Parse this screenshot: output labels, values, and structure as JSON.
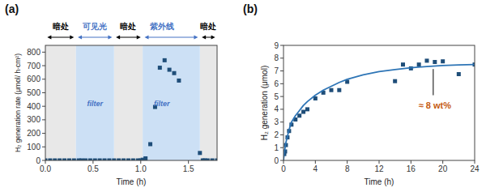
{
  "chart_data": [
    {
      "type": "scatter",
      "title": "(a)",
      "x_label": "Time (h)",
      "y_label": "H₂ generation rate (μmol/ h·cm²)",
      "xlim": [
        0,
        1.8
      ],
      "ylim": [
        0,
        850
      ],
      "xticks": [
        {
          "value": 0,
          "label": "0.0"
        },
        0.5,
        {
          "value": 1.0,
          "label": "1.0"
        },
        1.5
      ],
      "yticks": [
        0,
        100,
        200,
        300,
        400,
        500,
        600,
        700,
        800
      ],
      "series": [
        {
          "type": "scatter",
          "color": "#1f4e79",
          "marker": "square",
          "x": [
            0.0,
            0.05,
            0.1,
            0.15,
            0.2,
            0.25,
            0.3,
            0.35,
            0.38,
            0.42,
            0.47,
            0.52,
            0.57,
            0.62,
            0.67,
            0.72,
            0.77,
            0.82,
            0.87,
            0.92,
            0.97,
            1.0,
            1.02,
            1.05,
            1.1,
            1.15,
            1.2,
            1.25,
            1.3,
            1.35,
            1.4,
            1.62,
            1.65,
            1.67,
            1.7,
            1.75,
            1.8
          ],
          "values": [
            0,
            0,
            0,
            0,
            0,
            0,
            0,
            0,
            0,
            0,
            0,
            0,
            0,
            0,
            0,
            0,
            0,
            0,
            0,
            0,
            0,
            0,
            5,
            15,
            120,
            395,
            685,
            740,
            670,
            645,
            590,
            55,
            0,
            0,
            0,
            0,
            0
          ]
        }
      ],
      "regions": [
        {
          "start": 0,
          "end": 0.32,
          "color": "#e8e8e8"
        },
        {
          "start": 0.72,
          "end": 1.02,
          "color": "#e8e8e8"
        },
        {
          "start": 1.62,
          "end": 1.8,
          "color": "#e8e8e8"
        },
        {
          "start": 0.32,
          "end": 0.72,
          "color": "#cce0f5"
        },
        {
          "start": 1.02,
          "end": 1.62,
          "color": "#cce0f5"
        }
      ],
      "annotations": [
        {
          "x": 0.52,
          "y": 420,
          "text": "filter",
          "color": "#4472c4"
        },
        {
          "x": 1.22,
          "y": 420,
          "text": "filter",
          "color": "#4472c4"
        }
      ],
      "arrows": [
        {
          "x1": 0.02,
          "x2": 0.3,
          "color": "black"
        },
        {
          "x1": 0.34,
          "x2": 0.7,
          "color": "#4472c4"
        },
        {
          "x1": 0.74,
          "x2": 1.0,
          "color": "black"
        },
        {
          "x1": 1.04,
          "x2": 1.6,
          "color": "#4472c4"
        },
        {
          "x1": 1.64,
          "x2": 1.78,
          "color": "black"
        }
      ],
      "region_labels": [
        {
          "x": 0.16,
          "text": "暗处",
          "color": "black"
        },
        {
          "x": 0.52,
          "text": "可见光",
          "color": "#4472c4"
        },
        {
          "x": 0.87,
          "text": "暗处",
          "color": "black"
        },
        {
          "x": 1.22,
          "text": "紫外线",
          "color": "#4472c4"
        },
        {
          "x": 1.71,
          "text": "暗处",
          "color": "black"
        }
      ]
    },
    {
      "type": "scatter",
      "title": "(b)",
      "x_label": "Time (h)",
      "y_label": "H₂ generation (μmol)",
      "xlim": [
        0,
        24
      ],
      "ylim": [
        0,
        9
      ],
      "xticks": [
        0,
        4,
        8,
        12,
        16,
        20,
        24
      ],
      "yticks": [
        0,
        1,
        2,
        3,
        4,
        5,
        6,
        7,
        8,
        9
      ],
      "series": [
        {
          "type": "scatter",
          "color": "#1f4e79",
          "marker": "square",
          "x": [
            0.1,
            0.2,
            0.3,
            0.5,
            0.7,
            1.0,
            1.5,
            2.0,
            2.5,
            3.0,
            4.0,
            5.0,
            6.0,
            7.0,
            8.0,
            14.0,
            15.0,
            16.0,
            17.0,
            18.0,
            19.0,
            20.0,
            22.0,
            24.0
          ],
          "values": [
            0.5,
            0.7,
            1.2,
            1.8,
            2.3,
            2.8,
            3.2,
            3.5,
            3.8,
            4.0,
            4.85,
            5.3,
            5.5,
            5.5,
            6.15,
            6.2,
            7.5,
            7.2,
            7.5,
            7.8,
            7.7,
            7.75,
            6.75,
            7.5
          ]
        },
        {
          "type": "line",
          "color": "#2e75b6",
          "x": [
            0,
            0.1,
            0.2,
            0.3,
            0.5,
            0.7,
            1.0,
            1.5,
            2.0,
            2.5,
            3.0,
            4.0,
            5.0,
            6.0,
            7.0,
            8.0,
            10.0,
            12.0,
            14.0,
            16.0,
            18.0,
            20.0,
            22.0,
            24.0
          ],
          "values": [
            0,
            0.6,
            1.0,
            1.4,
            1.9,
            2.4,
            3.0,
            3.5,
            3.9,
            4.3,
            4.6,
            5.1,
            5.5,
            5.8,
            6.1,
            6.35,
            6.7,
            6.95,
            7.1,
            7.25,
            7.35,
            7.42,
            7.47,
            7.5
          ]
        }
      ],
      "annotations": [
        {
          "x": 19.0,
          "y": 4.3,
          "text": "≈ 8 wt%",
          "color": "#c55a11"
        }
      ],
      "connectors": [
        {
          "x": 18.8,
          "y_start": 7.15,
          "y_end": 5.1,
          "color": "black"
        }
      ]
    }
  ]
}
